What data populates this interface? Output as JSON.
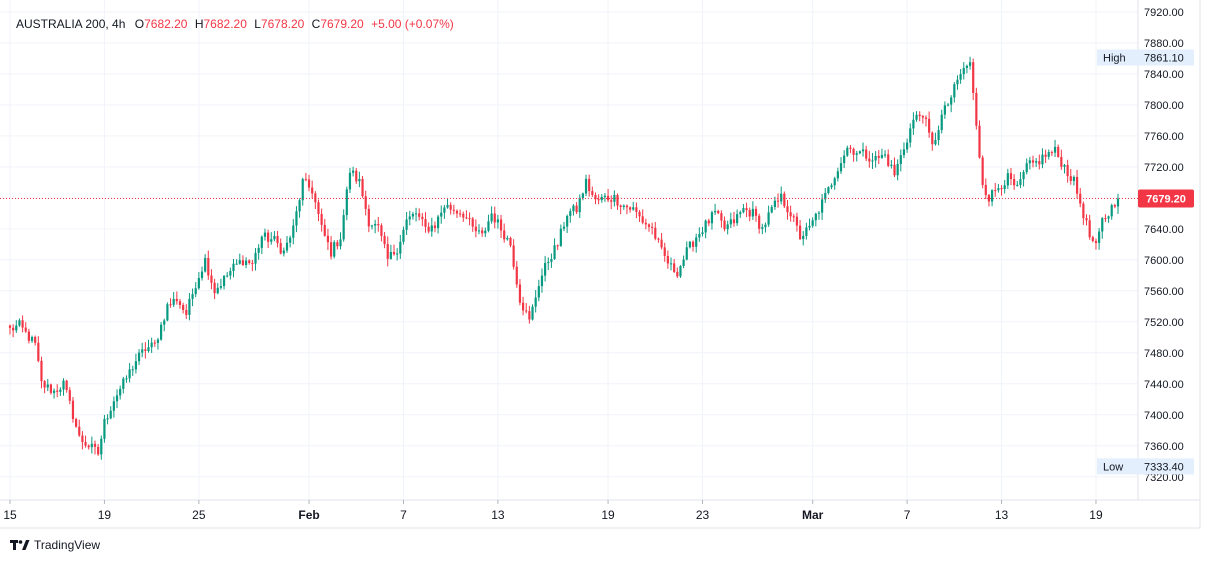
{
  "legend": {
    "symbol": "AUSTRALIA 200, 4h",
    "open_label": "O",
    "open": "7682.20",
    "high_label": "H",
    "high": "7682.20",
    "low_label": "L",
    "low": "7678.20",
    "close_label": "C",
    "close": "7679.20",
    "change": "+5.00 (+0.07%)"
  },
  "branding": {
    "name": "TradingView"
  },
  "colors": {
    "up": "#089981",
    "down": "#f23645",
    "grid": "#f0f3fa",
    "axis_text": "#131722",
    "tag_bg": "#e3effd"
  },
  "chart_data": {
    "type": "candlestick",
    "ylim": [
      7290,
      7925
    ],
    "y_ticks": [
      "7320.00",
      "7360.00",
      "7400.00",
      "7440.00",
      "7480.00",
      "7520.00",
      "7560.00",
      "7600.00",
      "7640.00",
      "7680.00",
      "7720.00",
      "7760.00",
      "7800.00",
      "7840.00",
      "7880.00",
      "7920.00"
    ],
    "x_ticks": [
      {
        "label": "15",
        "index": 0
      },
      {
        "label": "19",
        "index": 30
      },
      {
        "label": "25",
        "index": 60
      },
      {
        "label": "Feb",
        "index": 95
      },
      {
        "label": "7",
        "index": 125
      },
      {
        "label": "13",
        "index": 155
      },
      {
        "label": "19",
        "index": 190
      },
      {
        "label": "23",
        "index": 220
      },
      {
        "label": "Mar",
        "index": 255
      },
      {
        "label": "7",
        "index": 285
      },
      {
        "label": "13",
        "index": 315
      },
      {
        "label": "19",
        "index": 345
      }
    ],
    "last_price": "7679.20",
    "high_tag": {
      "label": "High",
      "value": "7861.10"
    },
    "low_tag": {
      "label": "Low",
      "value": "7333.40"
    },
    "anchors": [
      [
        0,
        7510
      ],
      [
        3,
        7515
      ],
      [
        8,
        7490
      ],
      [
        10,
        7440
      ],
      [
        14,
        7430
      ],
      [
        17,
        7440
      ],
      [
        20,
        7400
      ],
      [
        22,
        7370
      ],
      [
        25,
        7360
      ],
      [
        28,
        7350
      ],
      [
        30,
        7390
      ],
      [
        33,
        7420
      ],
      [
        36,
        7440
      ],
      [
        40,
        7470
      ],
      [
        43,
        7485
      ],
      [
        46,
        7490
      ],
      [
        50,
        7540
      ],
      [
        53,
        7550
      ],
      [
        56,
        7530
      ],
      [
        59,
        7570
      ],
      [
        62,
        7600
      ],
      [
        65,
        7560
      ],
      [
        68,
        7575
      ],
      [
        71,
        7590
      ],
      [
        74,
        7600
      ],
      [
        77,
        7595
      ],
      [
        80,
        7630
      ],
      [
        84,
        7625
      ],
      [
        87,
        7610
      ],
      [
        90,
        7640
      ],
      [
        93,
        7700
      ],
      [
        96,
        7690
      ],
      [
        99,
        7640
      ],
      [
        102,
        7610
      ],
      [
        105,
        7630
      ],
      [
        108,
        7715
      ],
      [
        111,
        7700
      ],
      [
        114,
        7650
      ],
      [
        117,
        7640
      ],
      [
        120,
        7600
      ],
      [
        123,
        7615
      ],
      [
        126,
        7650
      ],
      [
        129,
        7660
      ],
      [
        132,
        7640
      ],
      [
        135,
        7645
      ],
      [
        138,
        7670
      ],
      [
        141,
        7665
      ],
      [
        144,
        7660
      ],
      [
        147,
        7640
      ],
      [
        150,
        7630
      ],
      [
        153,
        7660
      ],
      [
        156,
        7640
      ],
      [
        159,
        7620
      ],
      [
        162,
        7550
      ],
      [
        165,
        7520
      ],
      [
        168,
        7570
      ],
      [
        171,
        7600
      ],
      [
        174,
        7620
      ],
      [
        177,
        7660
      ],
      [
        180,
        7665
      ],
      [
        183,
        7700
      ],
      [
        186,
        7675
      ],
      [
        189,
        7680
      ],
      [
        192,
        7680
      ],
      [
        195,
        7670
      ],
      [
        198,
        7665
      ],
      [
        201,
        7650
      ],
      [
        204,
        7640
      ],
      [
        207,
        7610
      ],
      [
        210,
        7590
      ],
      [
        212,
        7585
      ],
      [
        215,
        7610
      ],
      [
        218,
        7630
      ],
      [
        221,
        7645
      ],
      [
        224,
        7660
      ],
      [
        227,
        7640
      ],
      [
        230,
        7650
      ],
      [
        233,
        7665
      ],
      [
        236,
        7660
      ],
      [
        239,
        7640
      ],
      [
        242,
        7665
      ],
      [
        245,
        7680
      ],
      [
        248,
        7660
      ],
      [
        251,
        7630
      ],
      [
        254,
        7640
      ],
      [
        257,
        7665
      ],
      [
        260,
        7690
      ],
      [
        263,
        7720
      ],
      [
        266,
        7745
      ],
      [
        269,
        7740
      ],
      [
        272,
        7735
      ],
      [
        275,
        7730
      ],
      [
        278,
        7735
      ],
      [
        281,
        7710
      ],
      [
        284,
        7745
      ],
      [
        287,
        7780
      ],
      [
        290,
        7790
      ],
      [
        293,
        7745
      ],
      [
        296,
        7785
      ],
      [
        299,
        7810
      ],
      [
        302,
        7840
      ],
      [
        305,
        7855
      ],
      [
        307,
        7770
      ],
      [
        309,
        7700
      ],
      [
        311,
        7680
      ],
      [
        314,
        7695
      ],
      [
        317,
        7705
      ],
      [
        320,
        7690
      ],
      [
        323,
        7720
      ],
      [
        326,
        7725
      ],
      [
        329,
        7735
      ],
      [
        332,
        7740
      ],
      [
        335,
        7720
      ],
      [
        338,
        7700
      ],
      [
        341,
        7660
      ],
      [
        343,
        7630
      ],
      [
        345,
        7615
      ],
      [
        347,
        7650
      ],
      [
        349,
        7660
      ],
      [
        351,
        7675
      ],
      [
        352,
        7679
      ]
    ]
  }
}
